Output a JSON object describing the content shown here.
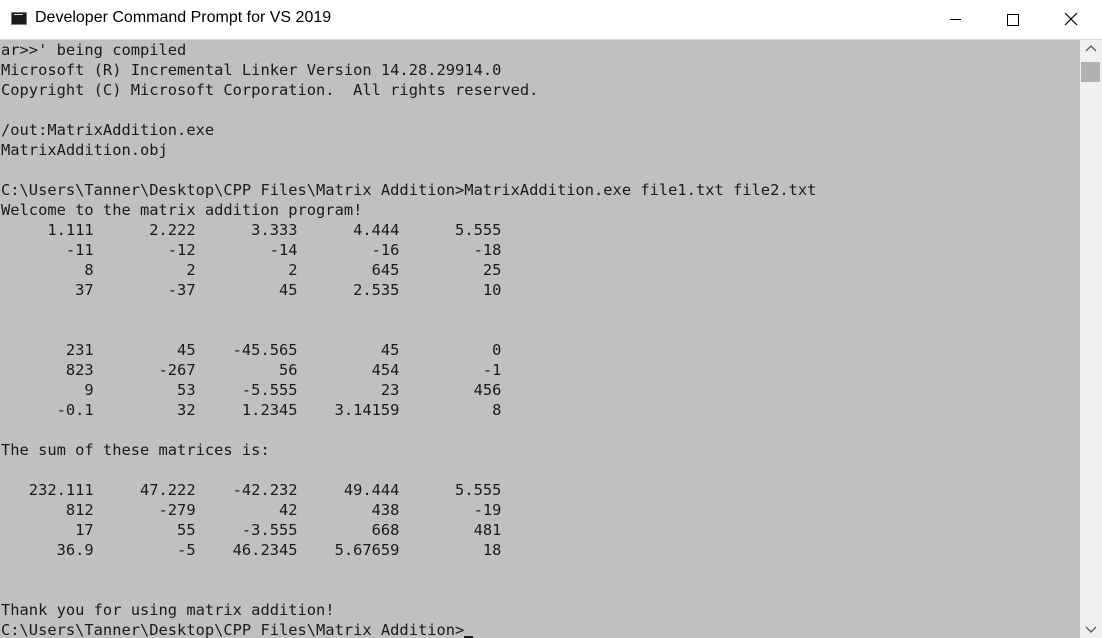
{
  "window": {
    "title": "Developer Command Prompt for VS 2019",
    "icon": "console-app-icon",
    "controls": {
      "minimize": "minimize-icon",
      "maximize": "maximize-icon",
      "close": "close-icon"
    }
  },
  "colors": {
    "console_background": "#c0c0c0",
    "console_text": "#1a1a1a",
    "titlebar_background": "#ffffff",
    "scrollbar_track": "#f0f0f0",
    "scrollbar_thumb": "#b0b0b0"
  },
  "console": {
    "lines": [
      "ar>>' being compiled",
      "Microsoft (R) Incremental Linker Version 14.28.29914.0",
      "Copyright (C) Microsoft Corporation.  All rights reserved.",
      "",
      "/out:MatrixAddition.exe",
      "MatrixAddition.obj",
      "",
      "C:\\Users\\Tanner\\Desktop\\CPP Files\\Matrix Addition>MatrixAddition.exe file1.txt file2.txt",
      "Welcome to the matrix addition program!",
      "     1.111      2.222      3.333      4.444      5.555",
      "       -11        -12        -14        -16        -18",
      "         8          2          2        645         25",
      "        37        -37         45      2.535         10",
      "",
      "",
      "       231         45    -45.565         45          0",
      "       823       -267         56        454         -1",
      "         9         53     -5.555         23        456",
      "      -0.1         32     1.2345    3.14159          8",
      "",
      "The sum of these matrices is:",
      "",
      "   232.111     47.222    -42.232     49.444      5.555",
      "       812       -279         42        438        -19",
      "        17         55     -3.555        668        481",
      "      36.9         -5    46.2345    5.67659         18",
      "",
      "",
      "Thank you for using matrix addition!"
    ],
    "prompt": "C:\\Users\\Tanner\\Desktop\\CPP Files\\Matrix Addition>"
  }
}
